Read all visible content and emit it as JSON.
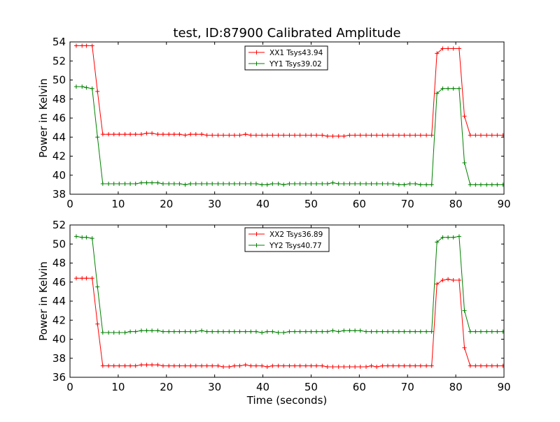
{
  "title": "test, ID:87900 Calibrated Amplitude",
  "chart_data": [
    {
      "type": "line",
      "title": "test, ID:87900 Calibrated Amplitude",
      "xlabel": "",
      "ylabel": "Power in Kelvin",
      "xlim": [
        0,
        90
      ],
      "ylim": [
        38,
        54
      ],
      "xticks": [
        0,
        10,
        20,
        30,
        40,
        50,
        60,
        70,
        80,
        90
      ],
      "yticks": [
        38,
        40,
        42,
        44,
        46,
        48,
        50,
        52,
        54
      ],
      "grid": false,
      "legend": "top-center",
      "series": [
        {
          "name": "XX1 Tsys43.94",
          "color": "#ff0000",
          "marker": "plus",
          "x": [
            1.3,
            2.5,
            3.4,
            4.6,
            5.7,
            6.8,
            8.0,
            9.1,
            10.2,
            11.4,
            12.5,
            13.6,
            14.8,
            15.9,
            17.0,
            18.2,
            19.3,
            20.5,
            21.6,
            22.7,
            23.9,
            25.0,
            26.1,
            27.3,
            28.4,
            29.5,
            30.7,
            31.8,
            33.0,
            34.1,
            35.2,
            36.4,
            37.5,
            38.6,
            39.8,
            40.9,
            42.0,
            43.2,
            44.3,
            45.5,
            46.6,
            47.7,
            48.9,
            50.0,
            51.1,
            52.3,
            53.4,
            54.5,
            55.7,
            56.8,
            58.0,
            59.1,
            60.2,
            61.4,
            62.5,
            63.6,
            64.8,
            65.9,
            67.0,
            68.2,
            69.3,
            70.5,
            71.6,
            72.7,
            73.9,
            75.0,
            76.1,
            77.3,
            78.4,
            79.5,
            80.7,
            81.8,
            83.0,
            84.1,
            85.2,
            86.4,
            87.5,
            88.6,
            89.8
          ],
          "y": [
            53.6,
            53.6,
            53.6,
            53.6,
            48.8,
            44.3,
            44.3,
            44.3,
            44.3,
            44.3,
            44.3,
            44.3,
            44.3,
            44.4,
            44.4,
            44.3,
            44.3,
            44.3,
            44.3,
            44.3,
            44.2,
            44.3,
            44.3,
            44.3,
            44.2,
            44.2,
            44.2,
            44.2,
            44.2,
            44.2,
            44.2,
            44.3,
            44.2,
            44.2,
            44.2,
            44.2,
            44.2,
            44.2,
            44.2,
            44.2,
            44.2,
            44.2,
            44.2,
            44.2,
            44.2,
            44.2,
            44.1,
            44.1,
            44.1,
            44.1,
            44.2,
            44.2,
            44.2,
            44.2,
            44.2,
            44.2,
            44.2,
            44.2,
            44.2,
            44.2,
            44.2,
            44.2,
            44.2,
            44.2,
            44.2,
            44.2,
            52.8,
            53.3,
            53.3,
            53.3,
            53.3,
            46.2,
            44.2,
            44.2,
            44.2,
            44.2,
            44.2,
            44.2,
            44.2
          ]
        },
        {
          "name": "YY1 Tsys39.02",
          "color": "#008000",
          "marker": "plus",
          "x": [
            1.3,
            2.5,
            3.4,
            4.6,
            5.7,
            6.8,
            8.0,
            9.1,
            10.2,
            11.4,
            12.5,
            13.6,
            14.8,
            15.9,
            17.0,
            18.2,
            19.3,
            20.5,
            21.6,
            22.7,
            23.9,
            25.0,
            26.1,
            27.3,
            28.4,
            29.5,
            30.7,
            31.8,
            33.0,
            34.1,
            35.2,
            36.4,
            37.5,
            38.6,
            39.8,
            40.9,
            42.0,
            43.2,
            44.3,
            45.5,
            46.6,
            47.7,
            48.9,
            50.0,
            51.1,
            52.3,
            53.4,
            54.5,
            55.7,
            56.8,
            58.0,
            59.1,
            60.2,
            61.4,
            62.5,
            63.6,
            64.8,
            65.9,
            67.0,
            68.2,
            69.3,
            70.5,
            71.6,
            72.7,
            73.9,
            75.0,
            76.1,
            77.3,
            78.4,
            79.5,
            80.7,
            81.8,
            83.0,
            84.1,
            85.2,
            86.4,
            87.5,
            88.6,
            89.8
          ],
          "y": [
            49.3,
            49.3,
            49.2,
            49.1,
            44.0,
            39.1,
            39.1,
            39.1,
            39.1,
            39.1,
            39.1,
            39.1,
            39.2,
            39.2,
            39.2,
            39.2,
            39.1,
            39.1,
            39.1,
            39.1,
            39.0,
            39.1,
            39.1,
            39.1,
            39.1,
            39.1,
            39.1,
            39.1,
            39.1,
            39.1,
            39.1,
            39.1,
            39.1,
            39.1,
            39.0,
            39.0,
            39.1,
            39.1,
            39.0,
            39.1,
            39.1,
            39.1,
            39.1,
            39.1,
            39.1,
            39.1,
            39.1,
            39.2,
            39.1,
            39.1,
            39.1,
            39.1,
            39.1,
            39.1,
            39.1,
            39.1,
            39.1,
            39.1,
            39.1,
            39.0,
            39.0,
            39.1,
            39.1,
            39.0,
            39.0,
            39.0,
            48.6,
            49.1,
            49.1,
            49.1,
            49.1,
            41.3,
            39.0,
            39.0,
            39.0,
            39.0,
            39.0,
            39.0,
            39.0
          ]
        }
      ]
    },
    {
      "type": "line",
      "title": "",
      "xlabel": "Time (seconds)",
      "ylabel": "Power in Kelvin",
      "xlim": [
        0,
        90
      ],
      "ylim": [
        36,
        52
      ],
      "xticks": [
        0,
        10,
        20,
        30,
        40,
        50,
        60,
        70,
        80,
        90
      ],
      "yticks": [
        36,
        38,
        40,
        42,
        44,
        46,
        48,
        50,
        52
      ],
      "grid": false,
      "legend": "top-center",
      "series": [
        {
          "name": "XX2 Tsys36.89",
          "color": "#ff0000",
          "marker": "plus",
          "x": [
            1.3,
            2.5,
            3.4,
            4.6,
            5.7,
            6.8,
            8.0,
            9.1,
            10.2,
            11.4,
            12.5,
            13.6,
            14.8,
            15.9,
            17.0,
            18.2,
            19.3,
            20.5,
            21.6,
            22.7,
            23.9,
            25.0,
            26.1,
            27.3,
            28.4,
            29.5,
            30.7,
            31.8,
            33.0,
            34.1,
            35.2,
            36.4,
            37.5,
            38.6,
            39.8,
            40.9,
            42.0,
            43.2,
            44.3,
            45.5,
            46.6,
            47.7,
            48.9,
            50.0,
            51.1,
            52.3,
            53.4,
            54.5,
            55.7,
            56.8,
            58.0,
            59.1,
            60.2,
            61.4,
            62.5,
            63.6,
            64.8,
            65.9,
            67.0,
            68.2,
            69.3,
            70.5,
            71.6,
            72.7,
            73.9,
            75.0,
            76.1,
            77.3,
            78.4,
            79.5,
            80.7,
            81.8,
            83.0,
            84.1,
            85.2,
            86.4,
            87.5,
            88.6,
            89.8
          ],
          "y": [
            46.4,
            46.4,
            46.4,
            46.4,
            41.6,
            37.2,
            37.2,
            37.2,
            37.2,
            37.2,
            37.2,
            37.2,
            37.3,
            37.3,
            37.3,
            37.3,
            37.2,
            37.2,
            37.2,
            37.2,
            37.2,
            37.2,
            37.2,
            37.2,
            37.2,
            37.2,
            37.2,
            37.1,
            37.1,
            37.2,
            37.2,
            37.3,
            37.2,
            37.2,
            37.2,
            37.1,
            37.2,
            37.2,
            37.2,
            37.2,
            37.2,
            37.2,
            37.2,
            37.2,
            37.2,
            37.2,
            37.1,
            37.1,
            37.1,
            37.1,
            37.1,
            37.1,
            37.1,
            37.1,
            37.2,
            37.1,
            37.2,
            37.2,
            37.2,
            37.2,
            37.2,
            37.2,
            37.2,
            37.2,
            37.2,
            37.2,
            45.8,
            46.2,
            46.3,
            46.2,
            46.2,
            39.1,
            37.2,
            37.2,
            37.2,
            37.2,
            37.2,
            37.2,
            37.2
          ]
        },
        {
          "name": "YY2 Tsys40.77",
          "color": "#008000",
          "marker": "plus",
          "x": [
            1.3,
            2.5,
            3.4,
            4.6,
            5.7,
            6.8,
            8.0,
            9.1,
            10.2,
            11.4,
            12.5,
            13.6,
            14.8,
            15.9,
            17.0,
            18.2,
            19.3,
            20.5,
            21.6,
            22.7,
            23.9,
            25.0,
            26.1,
            27.3,
            28.4,
            29.5,
            30.7,
            31.8,
            33.0,
            34.1,
            35.2,
            36.4,
            37.5,
            38.6,
            39.8,
            40.9,
            42.0,
            43.2,
            44.3,
            45.5,
            46.6,
            47.7,
            48.9,
            50.0,
            51.1,
            52.3,
            53.4,
            54.5,
            55.7,
            56.8,
            58.0,
            59.1,
            60.2,
            61.4,
            62.5,
            63.6,
            64.8,
            65.9,
            67.0,
            68.2,
            69.3,
            70.5,
            71.6,
            72.7,
            73.9,
            75.0,
            76.1,
            77.3,
            78.4,
            79.5,
            80.7,
            81.8,
            83.0,
            84.1,
            85.2,
            86.4,
            87.5,
            88.6,
            89.8
          ],
          "y": [
            50.8,
            50.7,
            50.7,
            50.6,
            45.5,
            40.7,
            40.7,
            40.7,
            40.7,
            40.7,
            40.8,
            40.8,
            40.9,
            40.9,
            40.9,
            40.9,
            40.8,
            40.8,
            40.8,
            40.8,
            40.8,
            40.8,
            40.8,
            40.9,
            40.8,
            40.8,
            40.8,
            40.8,
            40.8,
            40.8,
            40.8,
            40.8,
            40.8,
            40.8,
            40.7,
            40.8,
            40.8,
            40.7,
            40.7,
            40.8,
            40.8,
            40.8,
            40.8,
            40.8,
            40.8,
            40.8,
            40.8,
            40.9,
            40.8,
            40.9,
            40.9,
            40.9,
            40.9,
            40.8,
            40.8,
            40.8,
            40.8,
            40.8,
            40.8,
            40.8,
            40.8,
            40.8,
            40.8,
            40.8,
            40.8,
            40.8,
            50.2,
            50.7,
            50.7,
            50.7,
            50.8,
            43.0,
            40.8,
            40.8,
            40.8,
            40.8,
            40.8,
            40.8,
            40.8
          ]
        }
      ]
    }
  ]
}
